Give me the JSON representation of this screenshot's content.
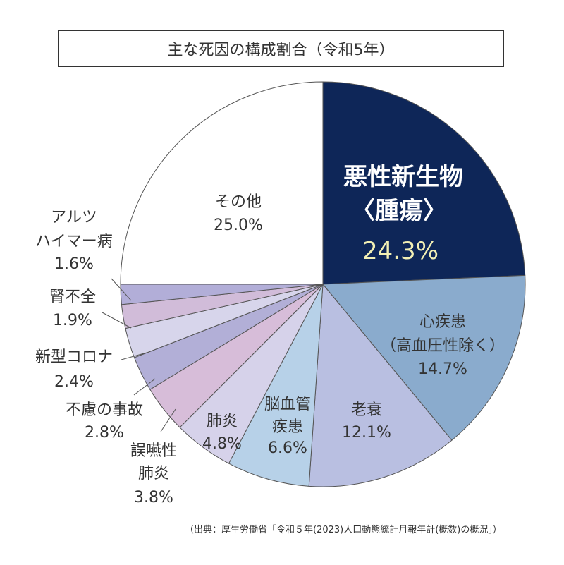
{
  "chart_data": {
    "type": "pie",
    "title": "主な死因の構成割合（令和5年）",
    "start": "12 o'clock, clockwise",
    "slices": [
      {
        "label": "悪性新生物〈腫瘍〉",
        "lines": [
          "悪性新生物",
          "〈腫瘍〉"
        ],
        "value": 24.3,
        "pct": "24.3%",
        "color": "#0e2658"
      },
      {
        "label": "心疾患（高血圧性除く）",
        "lines": [
          "心疾患",
          "（高血圧性除く）"
        ],
        "value": 14.7,
        "pct": "14.7%",
        "color": "#8aabcd"
      },
      {
        "label": "老衰",
        "lines": [
          "老衰"
        ],
        "value": 12.1,
        "pct": "12.1%",
        "color": "#b9bfe1"
      },
      {
        "label": "脳血管疾患",
        "lines": [
          "脳血管",
          "疾患"
        ],
        "value": 6.6,
        "pct": "6.6%",
        "color": "#b7d1e8"
      },
      {
        "label": "肺炎",
        "lines": [
          "肺炎"
        ],
        "value": 4.8,
        "pct": "4.8%",
        "color": "#d6d2ea"
      },
      {
        "label": "誤嚥性肺炎",
        "lines": [
          "誤嚥性",
          "肺炎"
        ],
        "value": 3.8,
        "pct": "3.8%",
        "color": "#d7bdd9"
      },
      {
        "label": "不慮の事故",
        "lines": [
          "不慮の事故"
        ],
        "value": 2.8,
        "pct": "2.8%",
        "color": "#b2afd7"
      },
      {
        "label": "新型コロナ",
        "lines": [
          "新型コロナ"
        ],
        "value": 2.4,
        "pct": "2.4%",
        "color": "#d7d5eb"
      },
      {
        "label": "腎不全",
        "lines": [
          "腎不全"
        ],
        "value": 1.9,
        "pct": "1.9%",
        "color": "#d1bcd9"
      },
      {
        "label": "アルツハイマー病",
        "lines": [
          "アルツ",
          "ハイマー病"
        ],
        "value": 1.6,
        "pct": "1.6%",
        "color": "#b2aed8"
      },
      {
        "label": "その他",
        "lines": [
          "その他"
        ],
        "value": 25.0,
        "pct": "25.0%",
        "color": "#ffffff"
      }
    ]
  },
  "source": "（出典：厚生労働省「令和５年(2023)人口動態統計月報年計(概数)の概況」）"
}
